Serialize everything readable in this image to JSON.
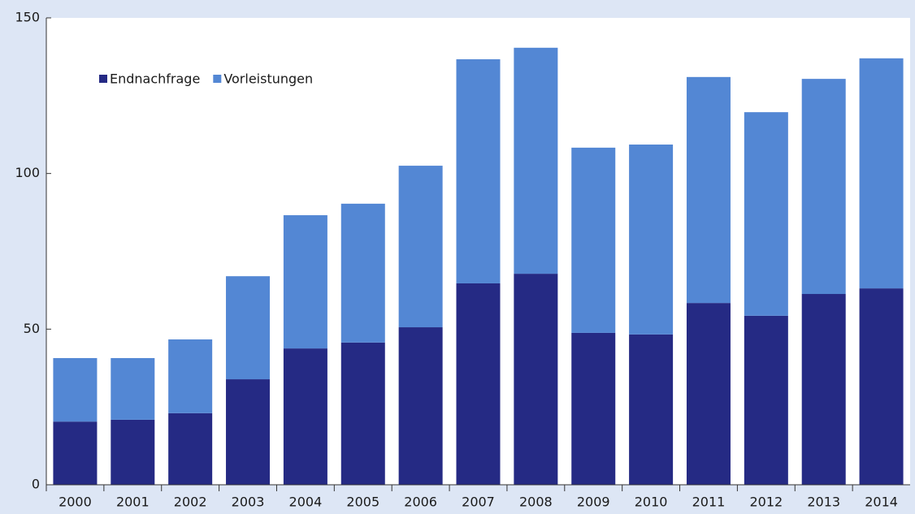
{
  "chart_data": {
    "type": "stacked-bar",
    "categories": [
      "2000",
      "2001",
      "2002",
      "2003",
      "2004",
      "2005",
      "2006",
      "2007",
      "2008",
      "2009",
      "2010",
      "2011",
      "2012",
      "2013",
      "2014"
    ],
    "series": [
      {
        "name": "Endnachfrage",
        "color": "#252a84",
        "values": [
          20.3,
          20.9,
          23.0,
          33.9,
          43.8,
          45.7,
          50.6,
          64.7,
          67.8,
          48.8,
          48.3,
          58.4,
          54.3,
          61.3,
          63.1
        ]
      },
      {
        "name": "Vorleistungen",
        "color": "#5387d4",
        "values": [
          20.4,
          19.8,
          23.7,
          33.1,
          42.8,
          44.6,
          51.9,
          72.0,
          72.6,
          59.5,
          61.0,
          72.6,
          65.4,
          69.1,
          73.9
        ]
      }
    ],
    "ylim": [
      0,
      150
    ],
    "yticks": [
      0,
      50,
      100,
      150
    ],
    "grid": false,
    "legend": "upper-left"
  }
}
